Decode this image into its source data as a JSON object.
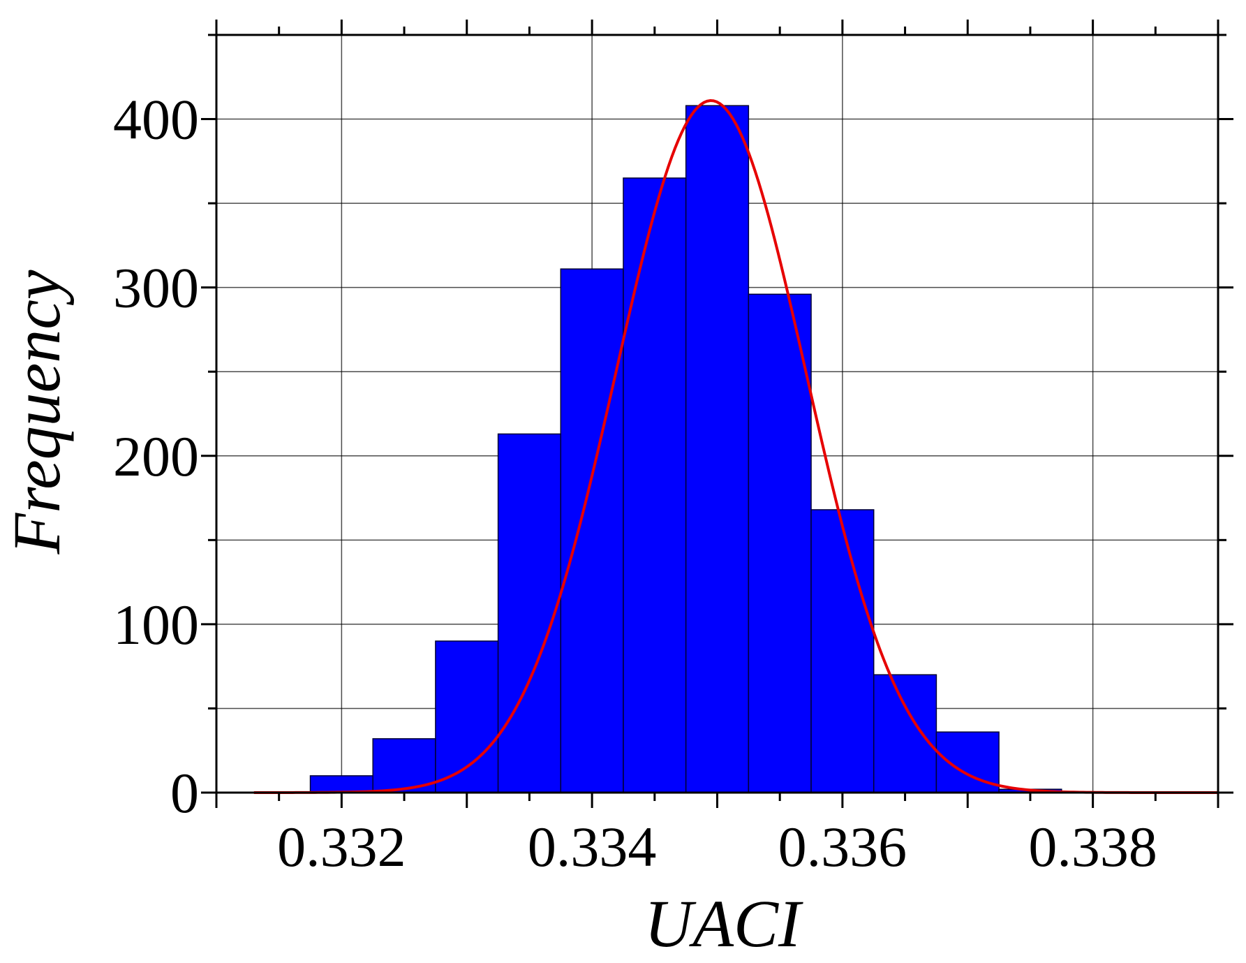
{
  "chart_data": {
    "type": "bar",
    "xlabel": "UACI",
    "ylabel": "Frequency",
    "xlim": [
      0.331,
      0.339
    ],
    "ylim": [
      0,
      450
    ],
    "x_tick_labels": [
      "0.332",
      "0.334",
      "0.336",
      "0.338"
    ],
    "y_tick_labels": [
      "0",
      "100",
      "200",
      "300",
      "400"
    ],
    "grid": true,
    "bin_width": 0.0005,
    "bins": [
      {
        "x": 0.332,
        "value": 10
      },
      {
        "x": 0.3325,
        "value": 32
      },
      {
        "x": 0.333,
        "value": 90
      },
      {
        "x": 0.3335,
        "value": 213
      },
      {
        "x": 0.334,
        "value": 311
      },
      {
        "x": 0.3345,
        "value": 365
      },
      {
        "x": 0.335,
        "value": 408
      },
      {
        "x": 0.3355,
        "value": 296
      },
      {
        "x": 0.336,
        "value": 168
      },
      {
        "x": 0.3365,
        "value": 70
      },
      {
        "x": 0.337,
        "value": 36
      },
      {
        "x": 0.3375,
        "value": 2
      }
    ],
    "fit_curve": {
      "type": "normal",
      "mean": 0.33495,
      "std": 0.00076,
      "peak": 411
    },
    "colors": {
      "bar": "#0000ff",
      "bar_edge": "#000033",
      "curve": "#e60000",
      "grid": "#000000"
    }
  }
}
